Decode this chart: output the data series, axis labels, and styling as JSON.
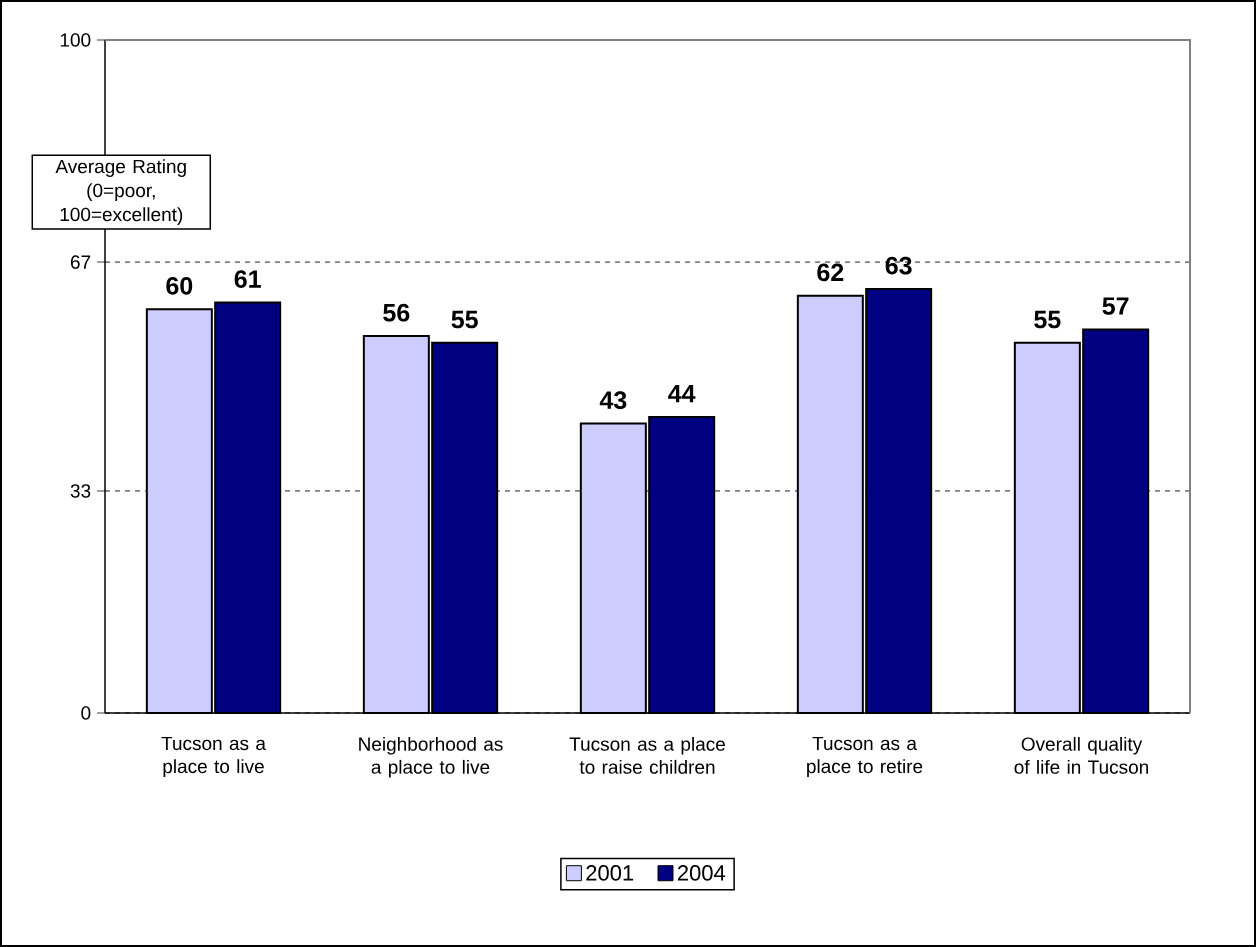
{
  "chart_data": {
    "type": "bar",
    "ylabel": "Average Rating (0=poor, 100=excellent)",
    "categories": [
      "Tucson as a place to live",
      "Neighborhood as a place to live",
      "Tucson as a place to raise children",
      "Tucson as a place to retire",
      "Overall quality of life in Tucson"
    ],
    "series": [
      {
        "name": "2001",
        "color": "#ccccff",
        "values": [
          60,
          56,
          43,
          62,
          55
        ]
      },
      {
        "name": "2004",
        "color": "#000080",
        "values": [
          61,
          55,
          44,
          63,
          57
        ]
      }
    ],
    "ylim": [
      0,
      100
    ],
    "yticks": [
      0,
      33,
      67,
      100
    ],
    "grid": "y",
    "legend": "bottom",
    "data_labels": true
  }
}
